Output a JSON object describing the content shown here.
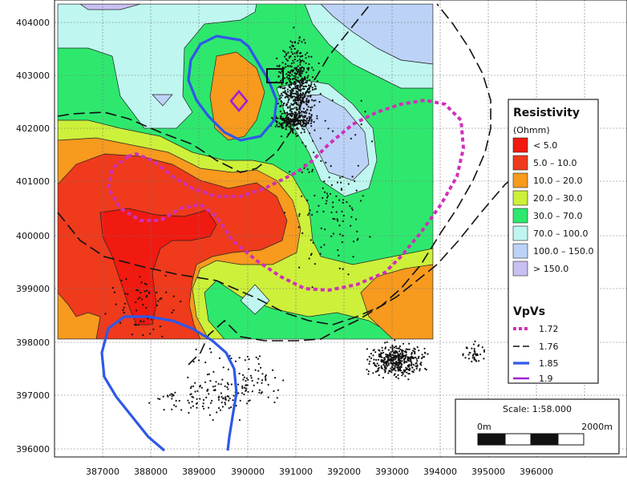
{
  "axes": {
    "x_ticks": [
      "387000",
      "388000",
      "389000",
      "390000",
      "391000",
      "392000",
      "393000",
      "394000",
      "395000",
      "396000"
    ],
    "y_ticks": [
      "404000",
      "403000",
      "402000",
      "401000",
      "400000",
      "399000",
      "398000",
      "397000",
      "396000"
    ]
  },
  "legend": {
    "resistivity_title": "Resistivity",
    "resistivity_unit": "(Ohmm)",
    "resistivity_items": [
      {
        "label": "< 5.0",
        "color": "#f01a10"
      },
      {
        "label": "5.0 – 10.0",
        "color": "#ef3a1c"
      },
      {
        "label": "10.0 – 20.0",
        "color": "#f79a1e"
      },
      {
        "label": "20.0 – 30.0",
        "color": "#cdf03a"
      },
      {
        "label": "30.0 – 70.0",
        "color": "#2ee86e"
      },
      {
        "label": "70.0 – 100.0",
        "color": "#bff7f0"
      },
      {
        "label": "100.0 – 150.0",
        "color": "#bcd3f7"
      },
      {
        "label": "> 150.0",
        "color": "#c9c0f2"
      }
    ],
    "vpvs_title": "VpVs",
    "vpvs_items": [
      {
        "label": "1.72",
        "color": "#d030b8",
        "style": "dotted"
      },
      {
        "label": "1.76",
        "color": "#111111",
        "style": "dashed"
      },
      {
        "label": "1.85",
        "color": "#2f58e8",
        "style": "solid"
      },
      {
        "label": "1.9",
        "color": "#a020d8",
        "style": "solid"
      }
    ]
  },
  "scale": {
    "label": "Scale: 1:58.000",
    "start": "0m",
    "end": "2000m"
  }
}
